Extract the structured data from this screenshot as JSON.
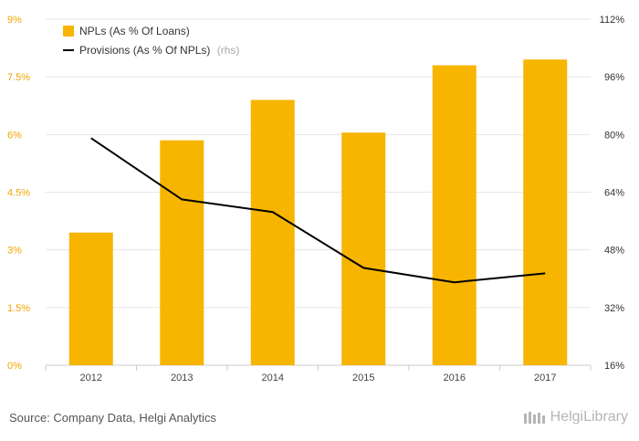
{
  "chart_data": {
    "type": "bar+line",
    "categories": [
      "2012",
      "2013",
      "2014",
      "2015",
      "2016",
      "2017"
    ],
    "series": [
      {
        "name": "NPLs (As % Of Loans)",
        "type": "bar",
        "axis": "left",
        "values": [
          3.45,
          5.85,
          6.9,
          6.05,
          7.8,
          7.95
        ],
        "color": "#f7b500"
      },
      {
        "name": "Provisions (As % Of NPLs)",
        "note": "(rhs)",
        "type": "line",
        "axis": "right",
        "values": [
          79,
          62,
          58.5,
          43,
          39,
          41.5
        ],
        "color": "#000000"
      }
    ],
    "left_axis": {
      "min": 0,
      "max": 9,
      "ticks": [
        "0%",
        "1.5%",
        "3%",
        "4.5%",
        "6%",
        "7.5%",
        "9%"
      ]
    },
    "right_axis": {
      "min": 16,
      "max": 112,
      "ticks": [
        "16%",
        "32%",
        "48%",
        "64%",
        "80%",
        "96%",
        "112%"
      ]
    },
    "legend_position": "top-left"
  },
  "footer": {
    "source": "Source: Company Data, Helgi Analytics",
    "brand": "HelgiLibrary"
  }
}
